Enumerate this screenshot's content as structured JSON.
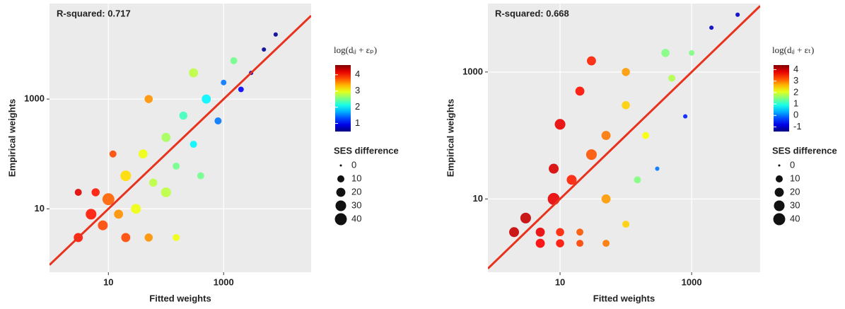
{
  "chart_data": [
    {
      "type": "scatter",
      "annotation": "R-squared: 0.717",
      "xlabel": "Fitted weights",
      "ylabel": "Empirical weights",
      "log_x": true,
      "log_y": true,
      "xlim": [
        0.95,
        33000
      ],
      "ylim": [
        0.7,
        55000
      ],
      "xticks": [
        10,
        1000
      ],
      "yticks": [
        10,
        1000
      ],
      "line_color": "#e8321e",
      "colorbar_title": "log(dᵢⱼ + εₚ)",
      "colorbar_lim": [
        0.5,
        4.6
      ],
      "colorbar_ticks": [
        1,
        2,
        3,
        4
      ],
      "size_legend_title": "SES difference",
      "size_legend_values": [
        0,
        10,
        20,
        30,
        40
      ],
      "x": [
        3,
        5,
        8,
        10,
        6,
        15,
        20,
        30,
        12,
        40,
        60,
        100,
        150,
        200,
        300,
        500,
        800,
        1000,
        2000,
        3000,
        5000,
        8000,
        1500,
        50,
        20,
        50,
        150,
        3,
        300,
        100,
        400
      ],
      "values": [
        3,
        8,
        5,
        15,
        20,
        8,
        40,
        10,
        100,
        100,
        30,
        200,
        60,
        500,
        150,
        1000,
        400,
        2000,
        1500,
        3000,
        8000,
        15000,
        5000,
        1000,
        3,
        3,
        3,
        20,
        3000,
        20,
        40
      ],
      "color_values": [
        4,
        4,
        3.8,
        3.7,
        4,
        3.5,
        3.2,
        3,
        3.8,
        3,
        2.8,
        2.7,
        2.5,
        2.3,
        2,
        2,
        1.5,
        1.5,
        1,
        0.7,
        0.6,
        0.6,
        2.5,
        3.5,
        3.8,
        3.5,
        3,
        4.2,
        2.8,
        2.8,
        2.5
      ],
      "sizes": [
        20,
        30,
        25,
        40,
        15,
        20,
        30,
        25,
        10,
        20,
        15,
        20,
        10,
        15,
        10,
        20,
        10,
        5,
        5,
        2,
        2,
        2,
        10,
        15,
        20,
        15,
        10,
        10,
        20,
        25,
        10
      ]
    },
    {
      "type": "scatter",
      "annotation": "R-squared: 0.668",
      "xlabel": "Fitted weights",
      "ylabel": "Empirical weights",
      "log_x": true,
      "log_y": true,
      "xlim": [
        0.8,
        11000
      ],
      "ylim": [
        0.7,
        12000
      ],
      "xticks": [
        10,
        1000
      ],
      "yticks": [
        10,
        1000
      ],
      "line_color": "#e8321e",
      "colorbar_title": "log(dᵢⱼ + εₜ)",
      "colorbar_lim": [
        -1.4,
        4.4
      ],
      "colorbar_ticks": [
        -1,
        0,
        1,
        2,
        3,
        4
      ],
      "size_legend_title": "SES difference",
      "size_legend_values": [
        0,
        10,
        20,
        30,
        40
      ],
      "x": [
        2,
        5,
        10,
        20,
        5,
        10,
        20,
        50,
        3,
        8,
        15,
        30,
        50,
        10,
        100,
        200,
        500,
        1000,
        300,
        800,
        2000,
        5000,
        30,
        100,
        50,
        100,
        150,
        20,
        400,
        8
      ],
      "values": [
        3,
        3,
        3,
        3,
        2,
        2,
        2,
        2,
        5,
        10,
        20,
        50,
        100,
        150,
        300,
        100,
        800,
        2000,
        30,
        200,
        5000,
        8000,
        1500,
        1000,
        10,
        4,
        20,
        500,
        2000,
        30
      ],
      "color_values": [
        4,
        3.8,
        3.5,
        3.2,
        3.7,
        3.6,
        3.3,
        3,
        4,
        3.8,
        3.5,
        3.2,
        3,
        3.8,
        2.5,
        2.2,
        1.8,
        1.5,
        0,
        -0.5,
        -1,
        -1,
        3.5,
        2.8,
        2.8,
        2.5,
        1.5,
        3.6,
        1.5,
        3.9
      ],
      "sizes": [
        25,
        20,
        15,
        10,
        20,
        15,
        10,
        10,
        30,
        40,
        25,
        30,
        20,
        30,
        15,
        10,
        10,
        5,
        2,
        2,
        2,
        2,
        20,
        15,
        20,
        10,
        10,
        20,
        15,
        25
      ]
    }
  ]
}
